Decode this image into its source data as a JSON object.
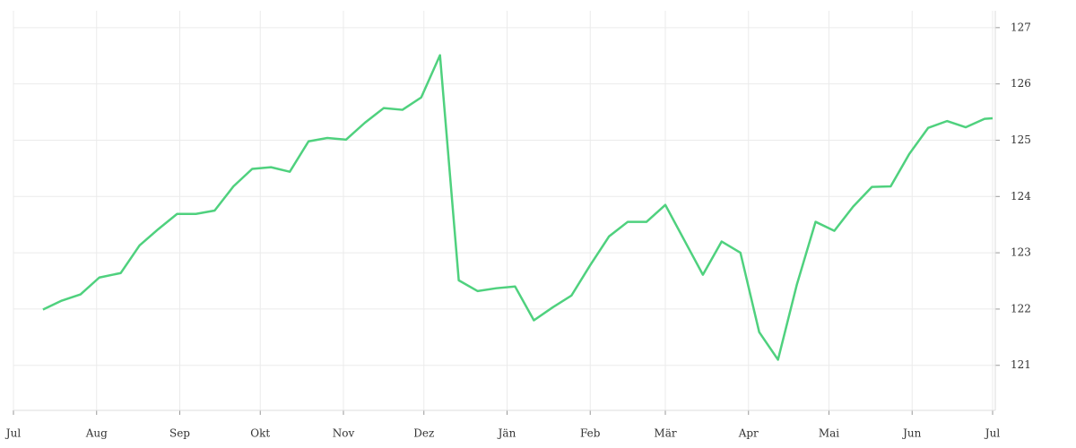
{
  "chart_data": {
    "type": "line",
    "x": [
      11,
      18,
      25,
      32,
      40,
      47,
      54,
      61,
      68,
      75,
      82,
      89,
      96,
      103,
      110,
      117,
      124,
      131,
      138,
      145,
      152,
      159,
      166,
      173,
      180,
      187,
      194,
      201,
      208,
      215,
      222,
      229,
      236,
      243,
      250,
      257,
      264,
      271,
      278,
      285,
      292,
      299,
      306,
      313,
      320,
      327,
      334,
      341,
      348,
      355,
      362,
      365
    ],
    "series": [
      {
        "name": null,
        "color": "#4fd17e",
        "values": [
          121.99,
          122.15,
          122.26,
          122.56,
          122.64,
          123.13,
          123.42,
          123.69,
          123.69,
          123.75,
          124.18,
          124.49,
          124.52,
          124.44,
          124.98,
          125.04,
          125.01,
          125.31,
          125.57,
          125.54,
          125.76,
          126.51,
          122.51,
          122.32,
          122.37,
          122.4,
          121.8,
          122.03,
          122.24,
          122.78,
          123.29,
          123.55,
          123.55,
          123.85,
          123.23,
          122.61,
          123.2,
          123.0,
          121.59,
          121.1,
          122.43,
          123.55,
          123.39,
          123.82,
          124.17,
          124.18,
          124.76,
          125.22,
          125.34,
          125.23,
          125.38,
          125.39
        ]
      }
    ],
    "xlim": [
      0,
      365
    ],
    "xticks": [
      {
        "value": 0,
        "label": "Jul"
      },
      {
        "value": 31,
        "label": "Aug"
      },
      {
        "value": 62,
        "label": "Sep"
      },
      {
        "value": 92,
        "label": "Okt"
      },
      {
        "value": 123,
        "label": "Nov"
      },
      {
        "value": 153,
        "label": "Dez"
      },
      {
        "value": 184,
        "label": "Jän"
      },
      {
        "value": 215,
        "label": "Feb"
      },
      {
        "value": 243,
        "label": "Mär"
      },
      {
        "value": 274,
        "label": "Apr"
      },
      {
        "value": 304,
        "label": "Mai"
      },
      {
        "value": 335,
        "label": "Jun"
      },
      {
        "value": 365,
        "label": "Jul"
      }
    ],
    "ylim": [
      120.2,
      127.3
    ],
    "yticks": [
      121,
      122,
      123,
      124,
      125,
      126,
      127
    ],
    "grid": true
  }
}
